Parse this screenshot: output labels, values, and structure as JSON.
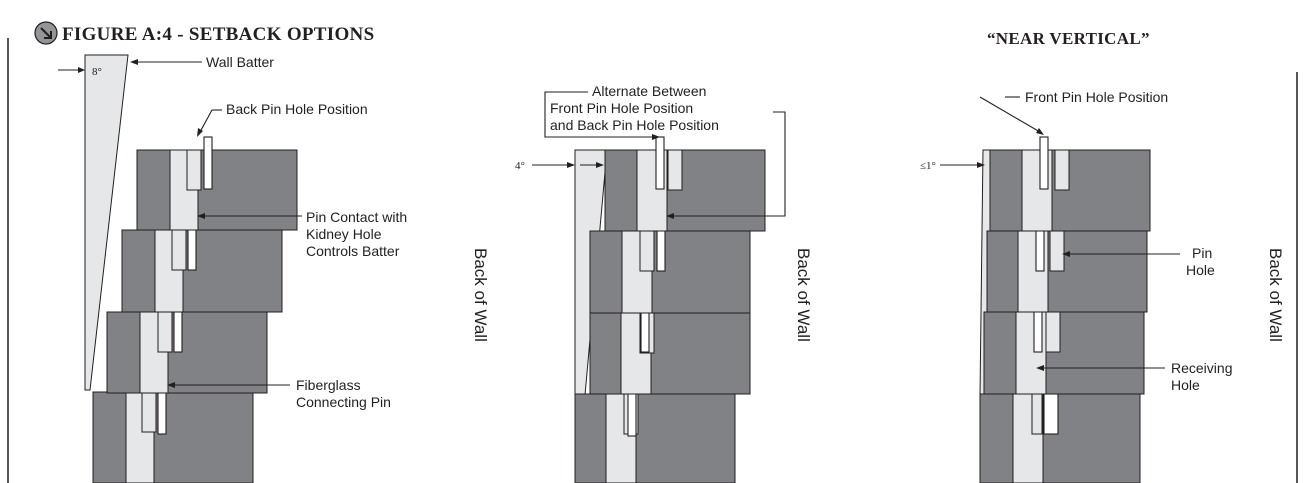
{
  "header": {
    "icon": "arrow-down-right-icon",
    "title": "FIGURE A:4 - SETBACK OPTIONS",
    "subtitle": "“NEAR VERTICAL”"
  },
  "panels": [
    {
      "angle": "8°",
      "labels": {
        "wall_batter": "Wall Batter",
        "back_pin_hole": "Back Pin Hole Position",
        "pin_contact_1": "Pin Contact with",
        "pin_contact_2": "Kidney Hole",
        "pin_contact_3": "Controls Batter",
        "fiberglass_1": "Fiberglass",
        "fiberglass_2": "Connecting Pin"
      },
      "side_label": "Back of Wall"
    },
    {
      "angle": "4°",
      "labels": {
        "alternate_1": "Alternate Between",
        "alternate_2": "Front Pin Hole Position",
        "alternate_3": "and Back Pin Hole Position"
      },
      "side_label": "Back of Wall"
    },
    {
      "angle": "≤1°",
      "labels": {
        "front_pin_hole": "Front Pin Hole Position",
        "pin_hole_1": "Pin",
        "pin_hole_2": "Hole",
        "receiving_1": "Receiving",
        "receiving_2": "Hole"
      },
      "side_label": "Back of Wall"
    }
  ],
  "colors": {
    "block": "#808285",
    "core": "#e6e7e8",
    "line": "#231f20",
    "icon_fill": "#939598"
  }
}
